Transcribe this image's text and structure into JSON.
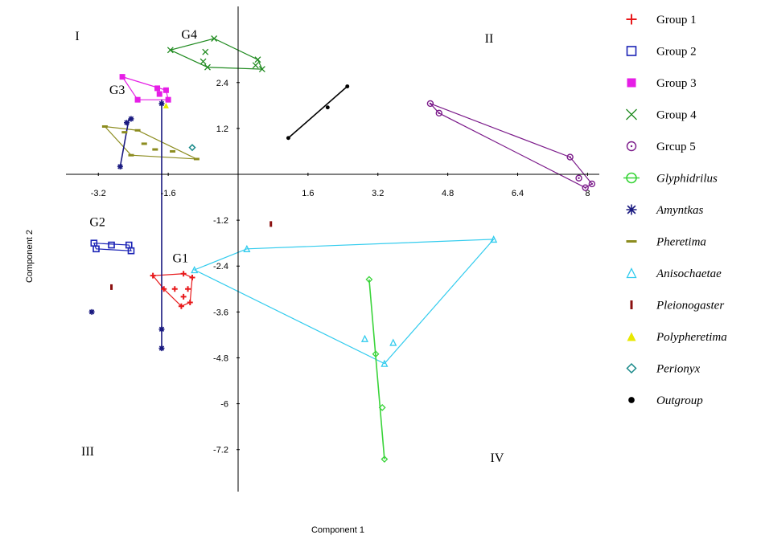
{
  "chart_data": {
    "type": "scatter",
    "title": "",
    "xlabel": "Component 1",
    "ylabel": "Component 2",
    "xlim": [
      -3.95,
      8.3
    ],
    "ylim": [
      -8.0,
      4.0
    ],
    "x_ticks": [
      -3.2,
      -1.6,
      1.6,
      3.2,
      4.8,
      6.4,
      8
    ],
    "x_tick_labels": [
      "-3.2",
      "-1.6",
      "1.6",
      "3.2",
      "4.8",
      "6.4",
      "8"
    ],
    "y_ticks": [
      2.4,
      1.2,
      -1.2,
      -2.4,
      -3.6,
      -4.8,
      -6,
      -7.2
    ],
    "y_tick_labels": [
      "2.4",
      "1.2",
      "-1.2",
      "-2.4",
      "-3.6",
      "-4.8",
      "-6",
      "-7.2"
    ],
    "grid": false,
    "legend_position": "right",
    "quadrant_labels": [
      "I",
      "II",
      "III",
      "IV"
    ],
    "group_labels": [
      {
        "text": "G1",
        "x": -1.5,
        "y": -2.3
      },
      {
        "text": "G2",
        "x": -3.4,
        "y": -1.35
      },
      {
        "text": "G3",
        "x": -2.95,
        "y": 2.1
      },
      {
        "text": "G4",
        "x": -1.3,
        "y": 3.55
      }
    ],
    "series": [
      {
        "name": "Group 1",
        "color": "#e8191b",
        "marker": "plus",
        "hull": true,
        "points": [
          [
            -1.95,
            -2.65
          ],
          [
            -1.25,
            -2.6
          ],
          [
            -1.05,
            -2.7
          ],
          [
            -1.1,
            -3.35
          ],
          [
            -1.3,
            -3.45
          ],
          [
            -1.45,
            -3.0
          ],
          [
            -1.7,
            -3.0
          ],
          [
            -1.25,
            -3.2
          ],
          [
            -1.15,
            -3.0
          ]
        ]
      },
      {
        "name": "Group 2",
        "color": "#1a22b5",
        "marker": "square",
        "hull": true,
        "points": [
          [
            -3.3,
            -1.8
          ],
          [
            -2.5,
            -1.85
          ],
          [
            -2.45,
            -2.0
          ],
          [
            -3.25,
            -1.95
          ],
          [
            -2.9,
            -1.85
          ]
        ]
      },
      {
        "name": "Group 3",
        "color": "#e61ee6",
        "marker": "filled-square",
        "hull": true,
        "points": [
          [
            -2.65,
            2.55
          ],
          [
            -1.85,
            2.25
          ],
          [
            -1.65,
            2.2
          ],
          [
            -1.6,
            1.95
          ],
          [
            -2.3,
            1.95
          ],
          [
            -1.8,
            2.1
          ]
        ]
      },
      {
        "name": "Group 4",
        "color": "#1f8a1f",
        "marker": "x",
        "hull": true,
        "points": [
          [
            -1.55,
            3.25
          ],
          [
            -0.55,
            3.55
          ],
          [
            0.45,
            3.0
          ],
          [
            0.55,
            2.75
          ],
          [
            -0.7,
            2.8
          ],
          [
            -0.8,
            2.95
          ],
          [
            -0.75,
            3.2
          ],
          [
            0.4,
            2.85
          ]
        ]
      },
      {
        "name": "Grcup 5",
        "color": "#7b1a8a",
        "marker": "circle-dot",
        "hull": true,
        "points": [
          [
            4.4,
            1.85
          ],
          [
            4.6,
            1.6
          ],
          [
            7.6,
            0.45
          ],
          [
            7.95,
            -0.35
          ],
          [
            8.1,
            -0.25
          ],
          [
            7.8,
            -0.1
          ]
        ]
      },
      {
        "name": "Glyphidrilus",
        "color": "#3ad43a",
        "marker": "diamond",
        "hull": false,
        "points": [
          [
            3.0,
            -2.75
          ],
          [
            3.3,
            -6.1
          ],
          [
            3.35,
            -7.45
          ],
          [
            3.15,
            -4.7
          ]
        ]
      },
      {
        "name": "Amyntkas",
        "color": "#1a1a80",
        "marker": "star",
        "hull": false,
        "points": [
          [
            -2.7,
            0.2
          ],
          [
            -2.55,
            1.35
          ],
          [
            -2.45,
            1.45
          ],
          [
            -1.75,
            1.85
          ],
          [
            -1.75,
            -4.55
          ],
          [
            -1.75,
            -4.05
          ],
          [
            -3.35,
            -3.6
          ]
        ]
      },
      {
        "name": "Pheretima",
        "color": "#8c8c1f",
        "marker": "bar",
        "hull": true,
        "points": [
          [
            -3.05,
            1.25
          ],
          [
            -2.3,
            1.15
          ],
          [
            -0.95,
            0.4
          ],
          [
            -2.45,
            0.5
          ],
          [
            -2.15,
            0.8
          ],
          [
            -1.9,
            0.65
          ],
          [
            -1.5,
            0.6
          ],
          [
            -2.6,
            1.1
          ]
        ]
      },
      {
        "name": "Anisochaetae",
        "color": "#33ccee",
        "marker": "triangle",
        "hull": true,
        "points": [
          [
            -1.0,
            -2.5
          ],
          [
            0.2,
            -1.95
          ],
          [
            5.85,
            -1.7
          ],
          [
            3.35,
            -4.95
          ],
          [
            3.55,
            -4.4
          ],
          [
            2.9,
            -4.3
          ]
        ]
      },
      {
        "name": "Pleionogaster",
        "color": "#8b1010",
        "marker": "small-bar",
        "hull": false,
        "points": [
          [
            0.75,
            -1.3
          ],
          [
            -2.9,
            -2.95
          ]
        ]
      },
      {
        "name": "Polypheretima",
        "color": "#e8e800",
        "marker": "triangle-filled",
        "hull": false,
        "points": [
          [
            -1.65,
            1.8
          ]
        ]
      },
      {
        "name": "Perionyx",
        "color": "#1a8a8a",
        "marker": "diamond-open",
        "hull": false,
        "points": [
          [
            -1.05,
            0.7
          ]
        ]
      },
      {
        "name": "Outgroup",
        "color": "#000000",
        "marker": "dot",
        "hull": false,
        "points": [
          [
            1.15,
            0.95
          ],
          [
            2.05,
            1.75
          ],
          [
            2.5,
            2.3
          ]
        ]
      }
    ],
    "segments": [
      {
        "series": "Amyntkas",
        "from": [
          -2.7,
          0.2
        ],
        "to": [
          -2.5,
          1.45
        ]
      },
      {
        "series": "Amyntkas",
        "from": [
          -1.75,
          1.95
        ],
        "to": [
          -1.75,
          -4.55
        ]
      },
      {
        "series": "Glyphidrilus",
        "from": [
          3.0,
          -2.75
        ],
        "to": [
          3.35,
          -7.45
        ]
      },
      {
        "series": "Outgroup",
        "from": [
          1.15,
          0.95
        ],
        "to": [
          2.5,
          2.3
        ]
      }
    ]
  }
}
